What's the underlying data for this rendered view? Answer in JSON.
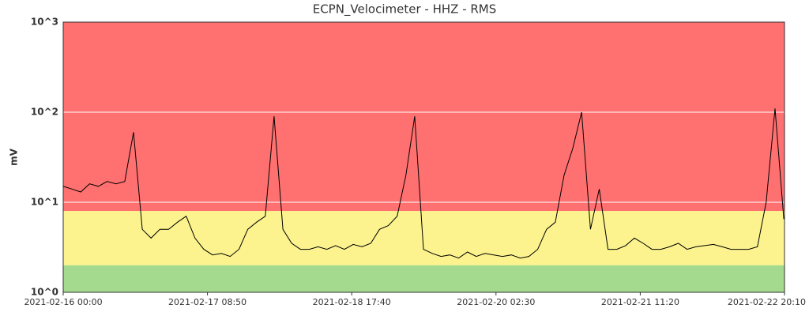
{
  "chart_data": {
    "type": "line",
    "title": "ECPN_Velocimeter - HHZ - RMS",
    "ylabel": "mV",
    "log_y": true,
    "ylim": [
      1,
      1000
    ],
    "yticks": [
      {
        "value": 1,
        "label": "10^0"
      },
      {
        "value": 10,
        "label": "10^1"
      },
      {
        "value": 100,
        "label": "10^2"
      },
      {
        "value": 1000,
        "label": "10^3"
      }
    ],
    "xlim": [
      "2021-02-16 00:00",
      "2021-02-22 20:10"
    ],
    "xticks": [
      "2021-02-16 00:00",
      "2021-02-17 08:50",
      "2021-02-18 17:40",
      "2021-02-20 02:30",
      "2021-02-21 11:20",
      "2021-02-22 20:10"
    ],
    "bands": [
      {
        "from": 1,
        "to": 2,
        "color": "#a3da8d"
      },
      {
        "from": 2,
        "to": 8,
        "color": "#fcf38e"
      },
      {
        "from": 8,
        "to": 1000,
        "color": "#ff7070"
      }
    ],
    "grid_color": "#ffffff",
    "x": [
      "2021-02-16 00:00",
      "2021-02-16 02:00",
      "2021-02-16 04:00",
      "2021-02-16 06:00",
      "2021-02-16 08:00",
      "2021-02-16 10:00",
      "2021-02-16 12:00",
      "2021-02-16 14:00",
      "2021-02-16 16:00",
      "2021-02-16 18:00",
      "2021-02-16 20:00",
      "2021-02-16 22:00",
      "2021-02-17 00:00",
      "2021-02-17 02:00",
      "2021-02-17 04:00",
      "2021-02-17 06:00",
      "2021-02-17 08:00",
      "2021-02-17 10:00",
      "2021-02-17 12:00",
      "2021-02-17 14:00",
      "2021-02-17 16:00",
      "2021-02-17 18:00",
      "2021-02-17 20:00",
      "2021-02-17 22:00",
      "2021-02-18 00:00",
      "2021-02-18 02:00",
      "2021-02-18 04:00",
      "2021-02-18 06:00",
      "2021-02-18 08:00",
      "2021-02-18 10:00",
      "2021-02-18 12:00",
      "2021-02-18 14:00",
      "2021-02-18 16:00",
      "2021-02-18 18:00",
      "2021-02-18 20:00",
      "2021-02-18 22:00",
      "2021-02-19 00:00",
      "2021-02-19 02:00",
      "2021-02-19 04:00",
      "2021-02-19 06:00",
      "2021-02-19 08:00",
      "2021-02-19 10:00",
      "2021-02-19 12:00",
      "2021-02-19 14:00",
      "2021-02-19 16:00",
      "2021-02-19 18:00",
      "2021-02-19 20:00",
      "2021-02-19 22:00",
      "2021-02-20 00:00",
      "2021-02-20 02:00",
      "2021-02-20 04:00",
      "2021-02-20 06:00",
      "2021-02-20 08:00",
      "2021-02-20 10:00",
      "2021-02-20 12:00",
      "2021-02-20 14:00",
      "2021-02-20 16:00",
      "2021-02-20 18:00",
      "2021-02-20 20:00",
      "2021-02-20 22:00",
      "2021-02-21 00:00",
      "2021-02-21 02:00",
      "2021-02-21 04:00",
      "2021-02-21 06:00",
      "2021-02-21 08:00",
      "2021-02-21 10:00",
      "2021-02-21 12:00",
      "2021-02-21 14:00",
      "2021-02-21 16:00",
      "2021-02-21 18:00",
      "2021-02-21 20:00",
      "2021-02-21 22:00",
      "2021-02-22 00:00",
      "2021-02-22 02:00",
      "2021-02-22 04:00",
      "2021-02-22 06:00",
      "2021-02-22 08:00",
      "2021-02-22 10:00",
      "2021-02-22 12:00",
      "2021-02-22 14:00",
      "2021-02-22 16:00",
      "2021-02-22 18:00",
      "2021-02-22 20:00"
    ],
    "series": [
      {
        "name": "RMS",
        "color": "#000000",
        "values": [
          15,
          14,
          13,
          16,
          15,
          17,
          16,
          17,
          60,
          5,
          4,
          5,
          5,
          6,
          7,
          4,
          3,
          2.6,
          2.7,
          2.5,
          3,
          5,
          6,
          7,
          90,
          5,
          3.5,
          3,
          3,
          3.2,
          3,
          3.3,
          3,
          3.4,
          3.2,
          3.5,
          5,
          5.5,
          7,
          20,
          90,
          3,
          2.7,
          2.5,
          2.6,
          2.4,
          2.8,
          2.5,
          2.7,
          2.6,
          2.5,
          2.6,
          2.4,
          2.5,
          3,
          5,
          6,
          20,
          40,
          100,
          5,
          14,
          3,
          3,
          3.3,
          4,
          3.5,
          3,
          3,
          3.2,
          3.5,
          3,
          3.2,
          3.3,
          3.4,
          3.2,
          3,
          3,
          3,
          3.2,
          10,
          110,
          6.5
        ]
      }
    ]
  }
}
